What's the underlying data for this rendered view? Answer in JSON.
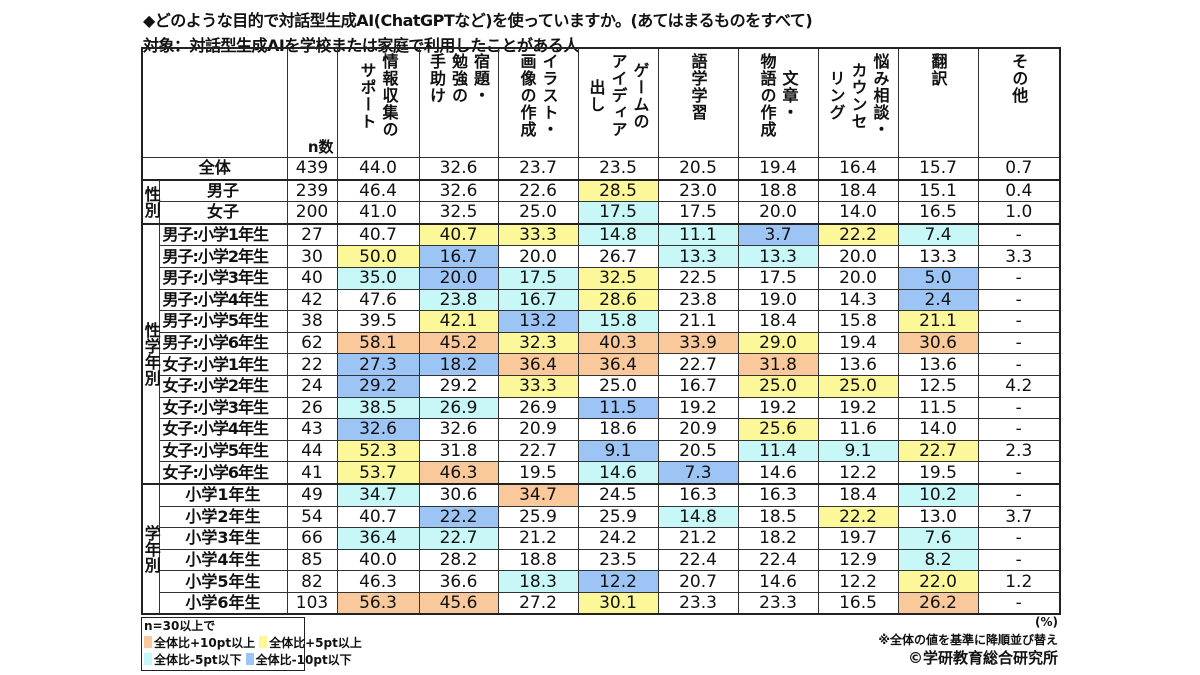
{
  "title": "◆どのような目的で対話型生成AI(ChatGPTなど)を使っていますか。(あてはまるものをすべて)",
  "subtitle": "対象：対話型生成AIを学校または家庭で利用したことがある人",
  "colors": {
    "plus10": "#f9c89b",
    "plus5": "#fcf89a",
    "minus5": "#c8f7f7",
    "minus10": "#9cc5f5"
  },
  "chart_data": {
    "type": "table",
    "n_header": "n数",
    "columns": [
      {
        "label": "情報収集のサポート",
        "lines": [
          "情報収集の",
          "サポート"
        ]
      },
      {
        "label": "宿題・勉強の手助け",
        "lines": [
          "宿題・",
          "勉強の",
          "手助け"
        ]
      },
      {
        "label": "イラスト・画像の作成",
        "lines": [
          "イラスト・",
          "画像の作成"
        ]
      },
      {
        "label": "ゲームのアイディア出し",
        "lines": [
          "ゲームの",
          "アイディア",
          "出し"
        ]
      },
      {
        "label": "語学学習",
        "lines": [
          "語学学習"
        ]
      },
      {
        "label": "文章・物語の作成",
        "lines": [
          "文章・",
          "物語の作成"
        ]
      },
      {
        "label": "悩み相談・カウンセリング",
        "lines": [
          "悩み相談・",
          "カウンセ",
          "リング"
        ]
      },
      {
        "label": "翻訳",
        "lines": [
          "翻訳"
        ]
      },
      {
        "label": "その他",
        "lines": [
          "その他"
        ]
      }
    ],
    "groups": [
      {
        "label": "",
        "rows": [
          {
            "label": "全体",
            "n": "439",
            "values": [
              "44.0",
              "32.6",
              "23.7",
              "23.5",
              "20.5",
              "19.4",
              "16.4",
              "15.7",
              "0.7"
            ],
            "hl": [
              "",
              "",
              "",
              "",
              "",
              "",
              "",
              "",
              ""
            ]
          }
        ]
      },
      {
        "label": "性別",
        "rows": [
          {
            "label": "男子",
            "n": "239",
            "values": [
              "46.4",
              "32.6",
              "22.6",
              "28.5",
              "23.0",
              "18.8",
              "18.4",
              "15.1",
              "0.4"
            ],
            "hl": [
              "",
              "",
              "",
              "plus5",
              "",
              "",
              "",
              "",
              ""
            ]
          },
          {
            "label": "女子",
            "n": "200",
            "values": [
              "41.0",
              "32.5",
              "25.0",
              "17.5",
              "17.5",
              "20.0",
              "14.0",
              "16.5",
              "1.0"
            ],
            "hl": [
              "",
              "",
              "",
              "minus5",
              "",
              "",
              "",
              "",
              ""
            ]
          }
        ]
      },
      {
        "label": "性学年別",
        "rows": [
          {
            "label": "男子:小学1年生",
            "n": "27",
            "values": [
              "40.7",
              "40.7",
              "33.3",
              "14.8",
              "11.1",
              "3.7",
              "22.2",
              "7.4",
              "-"
            ],
            "hl": [
              "",
              "plus5",
              "plus5",
              "minus5",
              "minus5",
              "minus10",
              "plus5",
              "minus5",
              ""
            ]
          },
          {
            "label": "男子:小学2年生",
            "n": "30",
            "values": [
              "50.0",
              "16.7",
              "20.0",
              "26.7",
              "13.3",
              "13.3",
              "20.0",
              "13.3",
              "3.3"
            ],
            "hl": [
              "plus5",
              "minus10",
              "",
              "",
              "minus5",
              "minus5",
              "",
              "",
              ""
            ]
          },
          {
            "label": "男子:小学3年生",
            "n": "40",
            "values": [
              "35.0",
              "20.0",
              "17.5",
              "32.5",
              "22.5",
              "17.5",
              "20.0",
              "5.0",
              "-"
            ],
            "hl": [
              "minus5",
              "minus10",
              "minus5",
              "plus5",
              "",
              "",
              "",
              "minus10",
              ""
            ]
          },
          {
            "label": "男子:小学4年生",
            "n": "42",
            "values": [
              "47.6",
              "23.8",
              "16.7",
              "28.6",
              "23.8",
              "19.0",
              "14.3",
              "2.4",
              "-"
            ],
            "hl": [
              "",
              "minus5",
              "minus5",
              "plus5",
              "",
              "",
              "",
              "minus10",
              ""
            ]
          },
          {
            "label": "男子:小学5年生",
            "n": "38",
            "values": [
              "39.5",
              "42.1",
              "13.2",
              "15.8",
              "21.1",
              "18.4",
              "15.8",
              "21.1",
              "-"
            ],
            "hl": [
              "",
              "plus5",
              "minus10",
              "minus5",
              "",
              "",
              "",
              "plus5",
              ""
            ]
          },
          {
            "label": "男子:小学6年生",
            "n": "62",
            "values": [
              "58.1",
              "45.2",
              "32.3",
              "40.3",
              "33.9",
              "29.0",
              "19.4",
              "30.6",
              "-"
            ],
            "hl": [
              "plus10",
              "plus10",
              "plus5",
              "plus10",
              "plus10",
              "plus5",
              "",
              "plus10",
              ""
            ]
          },
          {
            "label": "女子:小学1年生",
            "n": "22",
            "values": [
              "27.3",
              "18.2",
              "36.4",
              "36.4",
              "22.7",
              "31.8",
              "13.6",
              "13.6",
              "-"
            ],
            "hl": [
              "minus10",
              "minus10",
              "plus10",
              "plus10",
              "",
              "plus10",
              "",
              "",
              ""
            ]
          },
          {
            "label": "女子:小学2年生",
            "n": "24",
            "values": [
              "29.2",
              "29.2",
              "33.3",
              "25.0",
              "16.7",
              "25.0",
              "25.0",
              "12.5",
              "4.2"
            ],
            "hl": [
              "minus10",
              "",
              "plus5",
              "",
              "",
              "plus5",
              "plus5",
              "",
              ""
            ]
          },
          {
            "label": "女子:小学3年生",
            "n": "26",
            "values": [
              "38.5",
              "26.9",
              "26.9",
              "11.5",
              "19.2",
              "19.2",
              "19.2",
              "11.5",
              "-"
            ],
            "hl": [
              "minus5",
              "minus5",
              "",
              "minus10",
              "",
              "",
              "",
              "",
              ""
            ]
          },
          {
            "label": "女子:小学4年生",
            "n": "43",
            "values": [
              "32.6",
              "32.6",
              "20.9",
              "18.6",
              "20.9",
              "25.6",
              "11.6",
              "14.0",
              "-"
            ],
            "hl": [
              "minus10",
              "",
              "",
              "",
              "",
              "plus5",
              "",
              "",
              ""
            ]
          },
          {
            "label": "女子:小学5年生",
            "n": "44",
            "values": [
              "52.3",
              "31.8",
              "22.7",
              "9.1",
              "20.5",
              "11.4",
              "9.1",
              "22.7",
              "2.3"
            ],
            "hl": [
              "plus5",
              "",
              "",
              "minus10",
              "",
              "minus5",
              "minus5",
              "plus5",
              ""
            ]
          },
          {
            "label": "女子:小学6年生",
            "n": "41",
            "values": [
              "53.7",
              "46.3",
              "19.5",
              "14.6",
              "7.3",
              "14.6",
              "12.2",
              "19.5",
              "-"
            ],
            "hl": [
              "plus5",
              "plus10",
              "",
              "minus5",
              "minus10",
              "",
              "",
              "",
              ""
            ]
          }
        ]
      },
      {
        "label": "学年別",
        "rows": [
          {
            "label": "小学1年生",
            "n": "49",
            "values": [
              "34.7",
              "30.6",
              "34.7",
              "24.5",
              "16.3",
              "16.3",
              "18.4",
              "10.2",
              "-"
            ],
            "hl": [
              "minus5",
              "",
              "plus10",
              "",
              "",
              "",
              "",
              "minus5",
              ""
            ]
          },
          {
            "label": "小学2年生",
            "n": "54",
            "values": [
              "40.7",
              "22.2",
              "25.9",
              "25.9",
              "14.8",
              "18.5",
              "22.2",
              "13.0",
              "3.7"
            ],
            "hl": [
              "",
              "minus10",
              "",
              "",
              "minus5",
              "",
              "plus5",
              "",
              ""
            ]
          },
          {
            "label": "小学3年生",
            "n": "66",
            "values": [
              "36.4",
              "22.7",
              "21.2",
              "24.2",
              "21.2",
              "18.2",
              "19.7",
              "7.6",
              "-"
            ],
            "hl": [
              "minus5",
              "minus5",
              "",
              "",
              "",
              "",
              "",
              "minus5",
              ""
            ]
          },
          {
            "label": "小学4年生",
            "n": "85",
            "values": [
              "40.0",
              "28.2",
              "18.8",
              "23.5",
              "22.4",
              "22.4",
              "12.9",
              "8.2",
              "-"
            ],
            "hl": [
              "",
              "",
              "",
              "",
              "",
              "",
              "",
              "minus5",
              ""
            ]
          },
          {
            "label": "小学5年生",
            "n": "82",
            "values": [
              "46.3",
              "36.6",
              "18.3",
              "12.2",
              "20.7",
              "14.6",
              "12.2",
              "22.0",
              "1.2"
            ],
            "hl": [
              "",
              "",
              "minus5",
              "minus10",
              "",
              "",
              "",
              "plus5",
              ""
            ]
          },
          {
            "label": "小学6年生",
            "n": "103",
            "values": [
              "56.3",
              "45.6",
              "27.2",
              "30.1",
              "23.3",
              "23.3",
              "16.5",
              "26.2",
              "-"
            ],
            "hl": [
              "plus10",
              "plus10",
              "",
              "plus5",
              "",
              "",
              "",
              "plus10",
              ""
            ]
          }
        ]
      }
    ]
  },
  "legend": {
    "heading": "n=30以上で",
    "items": [
      {
        "key": "plus10",
        "label": "全体比+10pt以上"
      },
      {
        "key": "plus5",
        "label": "全体比+5pt以上"
      },
      {
        "key": "minus5",
        "label": "全体比-5pt以下"
      },
      {
        "key": "minus10",
        "label": "全体比-10pt以下"
      }
    ]
  },
  "notes": {
    "unit": "(%)",
    "sort_note": "※全体の値を基準に降順並び替え",
    "copyright": "©学研教育総合研究所"
  }
}
